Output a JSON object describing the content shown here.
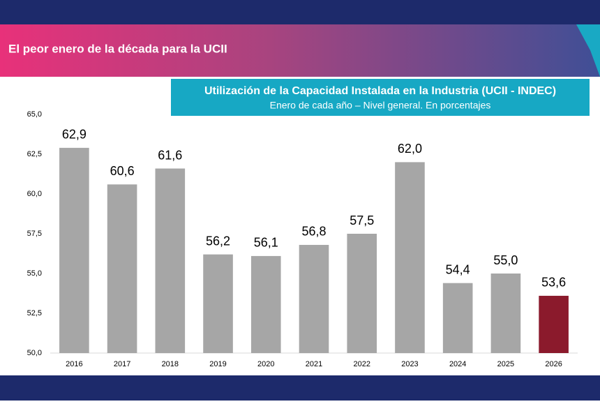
{
  "header": {
    "title": "El peor enero de la década para la UCII"
  },
  "chart_data": {
    "type": "bar",
    "title": "Utilización de la Capacidad Instalada en la Industria (UCII - INDEC)",
    "subtitle": "Enero de cada año – Nivel general. En porcentajes",
    "categories": [
      "2016",
      "2017",
      "2018",
      "2019",
      "2020",
      "2021",
      "2022",
      "2023",
      "2024",
      "2025",
      "2026"
    ],
    "values": [
      62.9,
      60.6,
      61.6,
      56.2,
      56.1,
      56.8,
      57.5,
      62.0,
      54.4,
      55.0,
      53.6
    ],
    "value_labels": [
      "62,9",
      "60,6",
      "61,6",
      "56,2",
      "56,1",
      "56,8",
      "57,5",
      "62,0",
      "54,4",
      "55,0",
      "53,6"
    ],
    "colors": [
      "#a6a6a6",
      "#a6a6a6",
      "#a6a6a6",
      "#a6a6a6",
      "#a6a6a6",
      "#a6a6a6",
      "#a6a6a6",
      "#a6a6a6",
      "#a6a6a6",
      "#a6a6a6",
      "#8b1a2c"
    ],
    "ylim": [
      50,
      65
    ],
    "yticks": [
      {
        "value": 50,
        "label": "50,0"
      },
      {
        "value": 52.5,
        "label": "52,5"
      },
      {
        "value": 55,
        "label": "55,0"
      },
      {
        "value": 57.5,
        "label": "57,5"
      },
      {
        "value": 60,
        "label": "60,0"
      },
      {
        "value": 62.5,
        "label": "62,5"
      },
      {
        "value": 65,
        "label": "65,0"
      }
    ],
    "grid": false
  }
}
